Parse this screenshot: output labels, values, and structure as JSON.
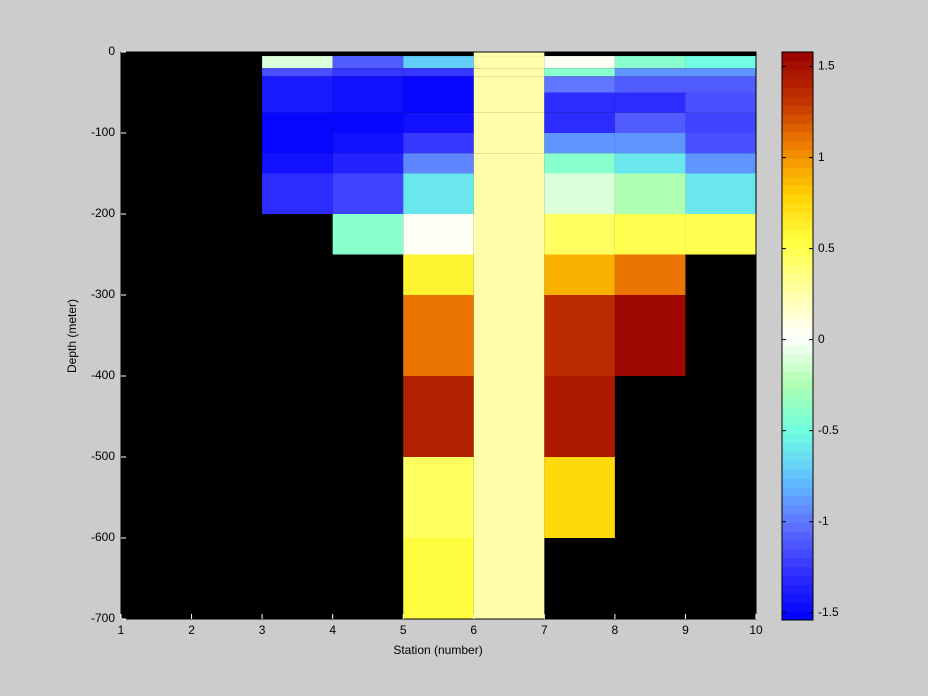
{
  "chart_data": {
    "type": "heatmap",
    "x_label": "Station (number)",
    "y_label": "Depth (meter)",
    "x_edges": [
      1,
      2,
      3,
      4,
      5,
      6,
      7,
      8,
      9,
      10
    ],
    "y_edges": [
      0,
      -5,
      -20,
      -30,
      -50,
      -75,
      -100,
      -125,
      -150,
      -200,
      -250,
      -300,
      -400,
      -500,
      -600,
      -700
    ],
    "values": [
      [
        null,
        null,
        null,
        null,
        null,
        0.25,
        null,
        null,
        null
      ],
      [
        null,
        null,
        -0.1,
        -1.1,
        -0.7,
        0.25,
        0.05,
        -0.4,
        -0.5
      ],
      [
        null,
        null,
        -1.15,
        -1.25,
        -1.25,
        0.25,
        -0.4,
        -0.9,
        -0.9
      ],
      [
        null,
        null,
        -1.4,
        -1.45,
        -1.5,
        0.25,
        -1.0,
        -1.1,
        -1.1
      ],
      [
        null,
        null,
        -1.4,
        -1.45,
        -1.5,
        0.25,
        -1.3,
        -1.3,
        -1.15
      ],
      [
        null,
        null,
        -1.5,
        -1.5,
        -1.45,
        0.25,
        -1.3,
        -1.1,
        -1.2
      ],
      [
        null,
        null,
        -1.5,
        -1.45,
        -1.25,
        0.25,
        -0.9,
        -0.9,
        -1.15
      ],
      [
        null,
        null,
        -1.45,
        -1.35,
        -0.95,
        0.25,
        -0.4,
        -0.6,
        -0.9
      ],
      [
        null,
        null,
        -1.3,
        -1.2,
        -0.6,
        0.25,
        -0.1,
        -0.25,
        -0.6
      ],
      [
        null,
        null,
        null,
        -0.4,
        0.05,
        0.25,
        0.45,
        0.5,
        0.5
      ],
      [
        null,
        null,
        null,
        null,
        0.6,
        0.25,
        0.9,
        1.1,
        null
      ],
      [
        null,
        null,
        null,
        null,
        1.1,
        0.25,
        1.35,
        1.55,
        null
      ],
      [
        null,
        null,
        null,
        null,
        1.4,
        0.25,
        1.45,
        null,
        null
      ],
      [
        null,
        null,
        null,
        null,
        0.45,
        0.25,
        0.75,
        null,
        null
      ],
      [
        null,
        null,
        null,
        null,
        0.55,
        0.25,
        null,
        null,
        null
      ]
    ],
    "xlim": [
      1,
      10
    ],
    "xticks": [
      1,
      2,
      3,
      4,
      5,
      6,
      7,
      8,
      9,
      10
    ],
    "ylim": [
      -700,
      0
    ],
    "yticks": [
      -700,
      -600,
      -500,
      -400,
      -300,
      -200,
      -100,
      0
    ],
    "clim": [
      -1.54,
      1.58
    ],
    "cticks": [
      -1.5,
      -1,
      -0.5,
      0,
      0.5,
      1,
      1.5
    ],
    "colormap": [
      "#0000ff",
      "#3030ff",
      "#6070ff",
      "#60c0ff",
      "#70ffe0",
      "#b0ffb0",
      "#ffffff",
      "#ffffa0",
      "#ffff40",
      "#ffd000",
      "#f08000",
      "#c03000",
      "#990000"
    ],
    "nan_color": "#000000",
    "background": "#cccccc"
  }
}
